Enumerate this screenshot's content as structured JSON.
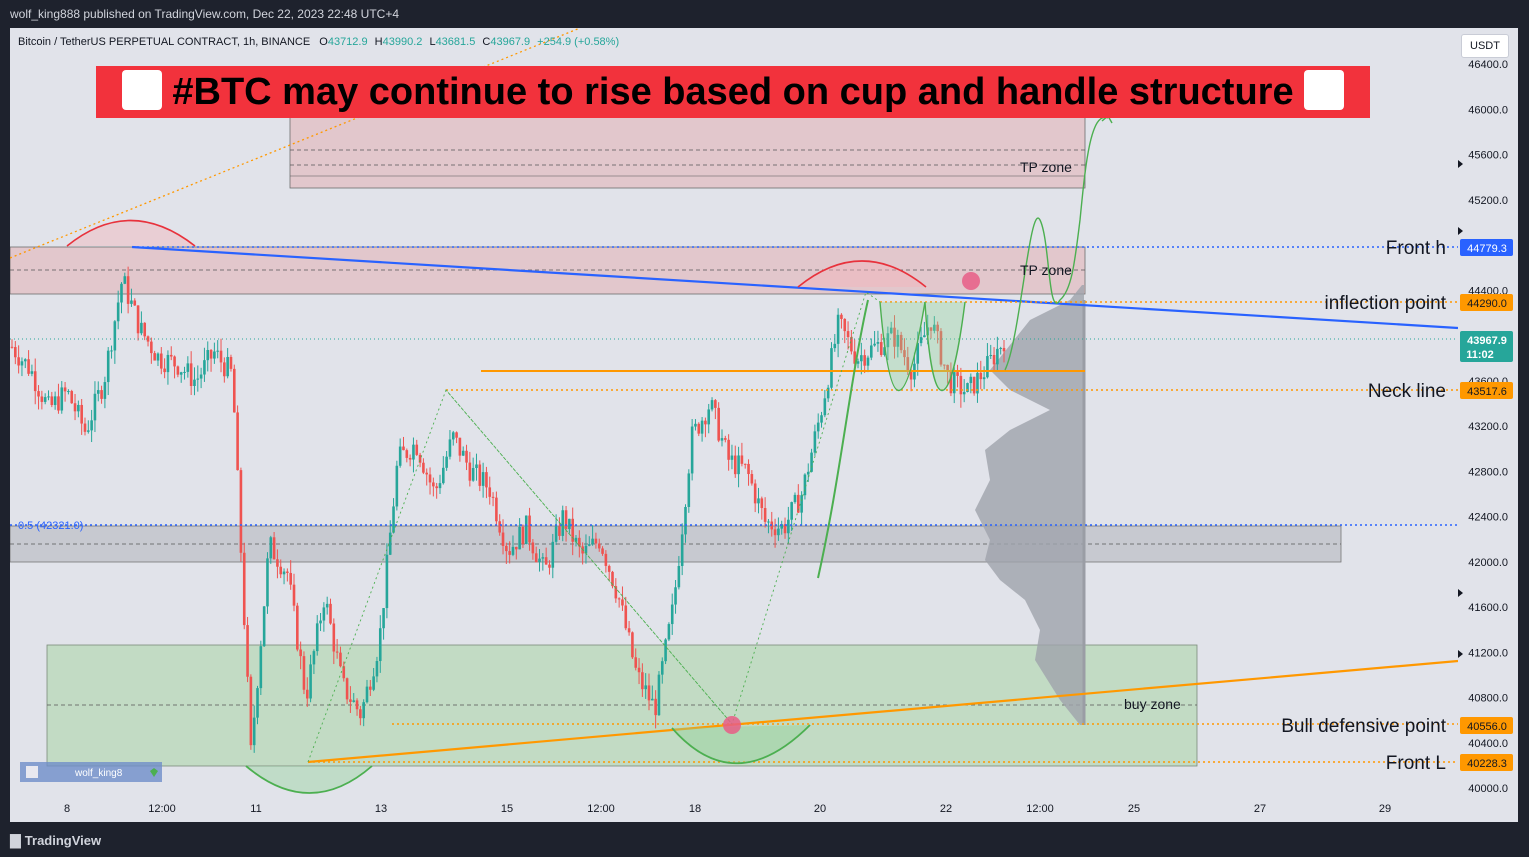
{
  "header": {
    "publish_line": "wolf_king888 published on TradingView.com, Dec 22, 2023 22:48 UTC+4"
  },
  "symbol_bar": {
    "symbol": "Bitcoin / TetherUS PERPETUAL CONTRACT, 1h, BINANCE",
    "open_label": "O",
    "open": "43712.9",
    "high_label": "H",
    "high": "43990.2",
    "low_label": "L",
    "low": "43681.5",
    "close_label": "C",
    "close": "43967.9",
    "change": "+254.9 (+0.58%)"
  },
  "currency_button": "USDT",
  "title_banner": "#BTC may continue to rise based on cup and handle structure",
  "watermark": "wolf_king8",
  "footer": {
    "brand": "TradingView"
  },
  "colors": {
    "up": "#26a69a",
    "down": "#ef5350",
    "title_bg": "#f2323c",
    "resistance": "#2962ff",
    "support": "#ff9800",
    "zone_tp": "#f7c9cf",
    "zone_buy": "#b7dcb9"
  },
  "chart_data": {
    "type": "candlestick",
    "ylim": [
      40000,
      46400
    ],
    "y_ticks": [
      40000,
      40400,
      40800,
      41200,
      41600,
      42000,
      42400,
      42800,
      43200,
      43600,
      44000,
      44400,
      44800,
      45200,
      45600,
      46000,
      46400
    ],
    "x_ticks": [
      "8",
      "12:00",
      "11",
      "13",
      "15",
      "12:00",
      "18",
      "20",
      "22",
      "12:00",
      "25",
      "27",
      "29"
    ],
    "price_series_approx": [
      43900,
      43700,
      43350,
      43500,
      43150,
      43600,
      44500,
      44050,
      43800,
      43750,
      43600,
      43850,
      43650,
      40300,
      42150,
      41900,
      40800,
      41700,
      40900,
      40650,
      41300,
      42900,
      43050,
      42600,
      43100,
      42800,
      42650,
      42100,
      42300,
      41900,
      42400,
      42050,
      42200,
      41700,
      41000,
      40700,
      41600,
      43100,
      43400,
      42900,
      42800,
      42350,
      42300,
      42600,
      43300,
      44100,
      43800,
      43900,
      44000,
      43700,
      44150,
      43600,
      43500,
      43700,
      43968
    ],
    "levels": [
      {
        "label": "Front h",
        "value": "44779.3"
      },
      {
        "label": "inflection point",
        "value": "44290.0"
      },
      {
        "label": "Neck line",
        "value": "43517.6"
      },
      {
        "label": "Bull defensive point",
        "value": "40556.0"
      },
      {
        "label": "Front L",
        "value": "40228.3"
      }
    ],
    "current_price": "43967.9",
    "countdown": "11:02",
    "fib_label": "0.5 (42321.0)",
    "zone_labels": [
      "TP zone",
      "TP zone",
      "buy zone"
    ]
  }
}
